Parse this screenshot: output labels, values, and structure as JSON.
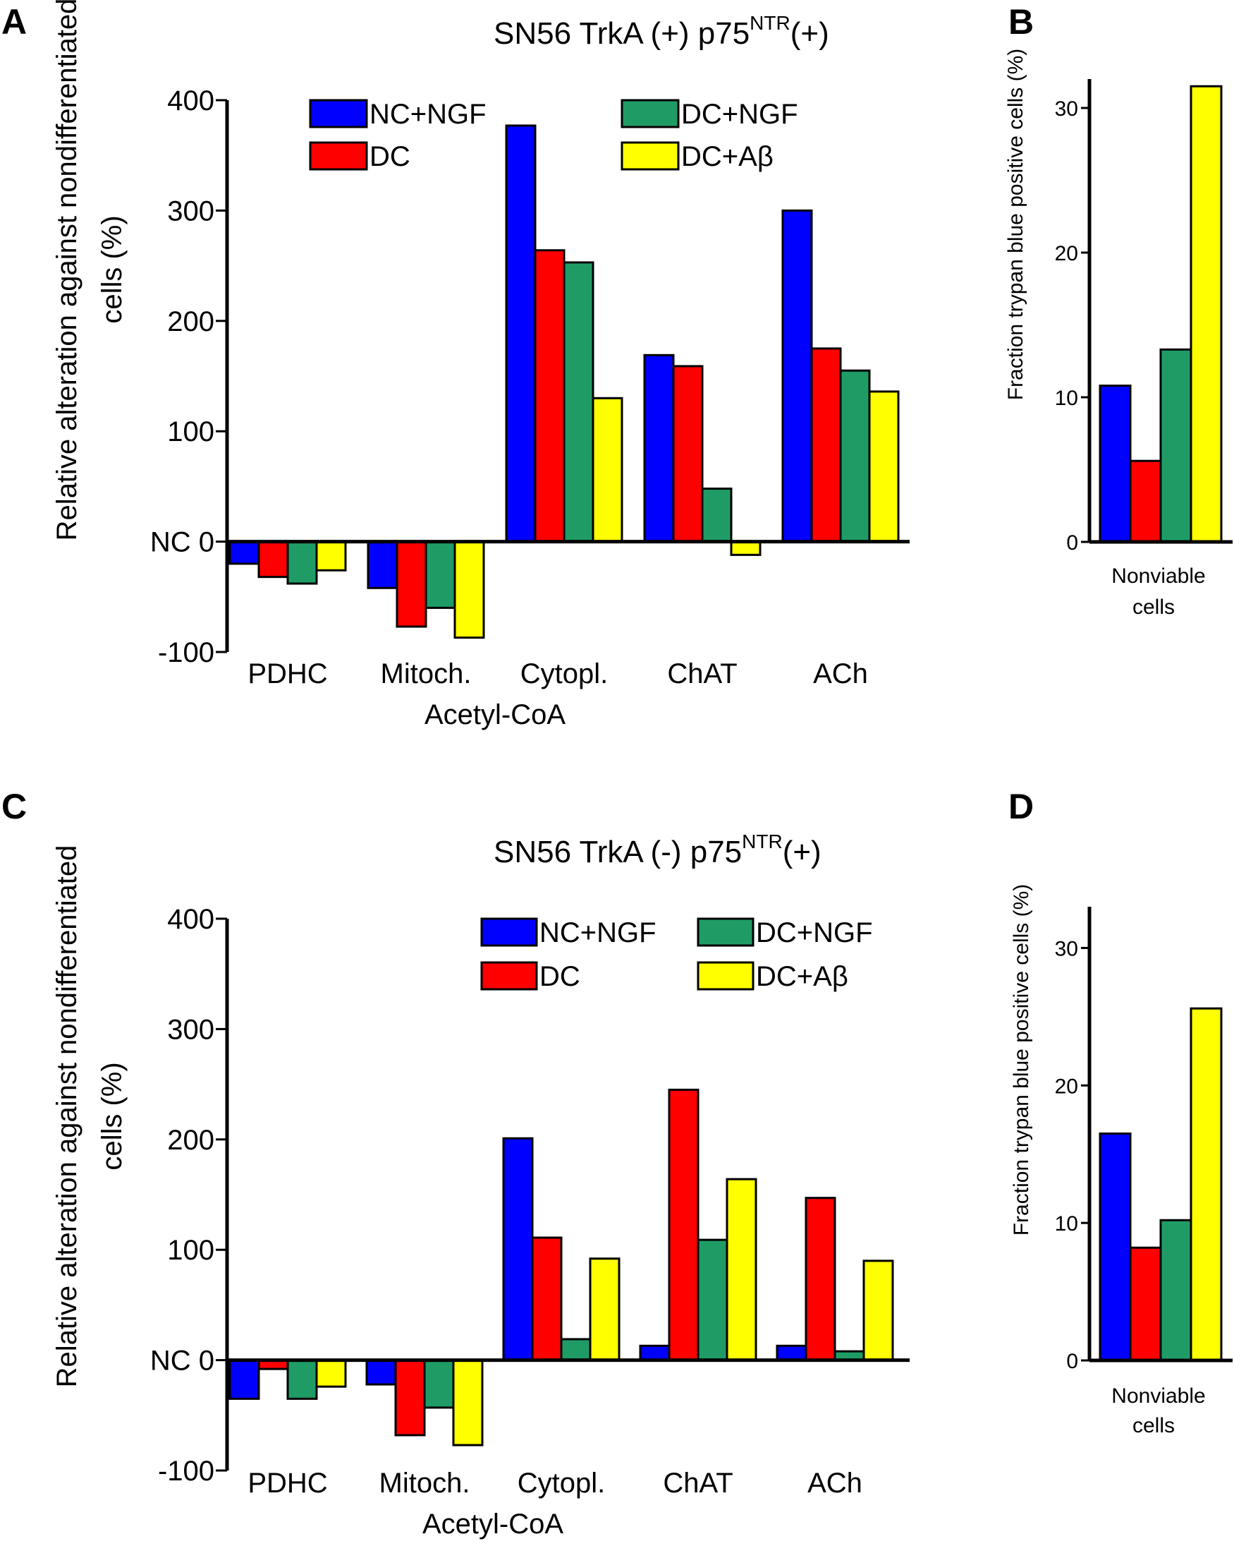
{
  "series_colors": {
    "NC+NGF": "#0000ff",
    "DC": "#ff0000",
    "DC+NGF": "#1f9c66",
    "DC+Aβ": "#ffff00"
  },
  "chart_data": [
    {
      "panel": "A",
      "type": "bar",
      "title": "SN56 TrkA (+) p75",
      "title_superscript": "NTR",
      "title_suffix": "(+)",
      "ylabel_line1": "Relative alteration against nondifferentiated",
      "ylabel_line2": "cells (%)",
      "ylim": [
        -100,
        400
      ],
      "yticks": [
        {
          "value": 400,
          "label": "400"
        },
        {
          "value": 300,
          "label": "300"
        },
        {
          "value": 200,
          "label": "200"
        },
        {
          "value": 100,
          "label": "100"
        },
        {
          "value": 0,
          "label": "NC 0"
        },
        {
          "value": -100,
          "label": "-100"
        }
      ],
      "categories": [
        "PDHC",
        "Mitoch.",
        "Cytopl.",
        "ChAT",
        "ACh"
      ],
      "category_group_label": "Acetyl-CoA",
      "series": [
        {
          "name": "NC+NGF",
          "values": [
            -20,
            -42,
            377,
            169,
            300
          ]
        },
        {
          "name": "DC",
          "values": [
            -32,
            -77,
            264,
            159,
            175
          ]
        },
        {
          "name": "DC+NGF",
          "values": [
            -38,
            -60,
            253,
            48,
            155
          ]
        },
        {
          "name": "DC+Aβ",
          "values": [
            -26,
            -87,
            130,
            -12,
            136
          ]
        }
      ],
      "legend": [
        "NC+NGF",
        "DC",
        "DC+NGF",
        "DC+Aβ"
      ]
    },
    {
      "panel": "B",
      "type": "bar",
      "ylabel": "Fraction trypan blue positive cells  (%)",
      "ylim": [
        0,
        32
      ],
      "yticks": [
        {
          "value": 30,
          "label": "30"
        },
        {
          "value": 20,
          "label": "20"
        },
        {
          "value": 10,
          "label": "10"
        },
        {
          "value": 0,
          "label": "0"
        }
      ],
      "category_line1": "Nonviable",
      "category_line2": "cells",
      "series": [
        {
          "name": "NC+NGF",
          "value": 10.8
        },
        {
          "name": "DC",
          "value": 5.6
        },
        {
          "name": "DC+NGF",
          "value": 13.3
        },
        {
          "name": "DC+Aβ",
          "value": 31.5
        }
      ]
    },
    {
      "panel": "C",
      "type": "bar",
      "title": "SN56 TrkA (-) p75",
      "title_superscript": "NTR",
      "title_suffix": "(+)",
      "ylabel_line1": "Relative alteration against nondifferentiated",
      "ylabel_line2": "cells (%)",
      "ylim": [
        -100,
        400
      ],
      "yticks": [
        {
          "value": 400,
          "label": "400"
        },
        {
          "value": 300,
          "label": "300"
        },
        {
          "value": 200,
          "label": "200"
        },
        {
          "value": 100,
          "label": "100"
        },
        {
          "value": 0,
          "label": "NC 0"
        },
        {
          "value": -100,
          "label": "-100"
        }
      ],
      "categories": [
        "PDHC",
        "Mitoch.",
        "Cytopl.",
        "ChAT",
        "ACh"
      ],
      "category_group_label": "Acetyl-CoA",
      "series": [
        {
          "name": "NC+NGF",
          "values": [
            -35,
            -22,
            201,
            13,
            13
          ]
        },
        {
          "name": "DC",
          "values": [
            -8,
            -68,
            111,
            245,
            147
          ]
        },
        {
          "name": "DC+NGF",
          "values": [
            -35,
            -43,
            19,
            109,
            8
          ]
        },
        {
          "name": "DC+Aβ",
          "values": [
            -24,
            -77,
            92,
            164,
            90
          ]
        }
      ],
      "legend": [
        "NC+NGF",
        "DC",
        "DC+NGF",
        "DC+Aβ"
      ]
    },
    {
      "panel": "D",
      "type": "bar",
      "ylabel": "Fraction trypan blue positive cells  (%)",
      "ylim": [
        0,
        33
      ],
      "yticks": [
        {
          "value": 30,
          "label": "30"
        },
        {
          "value": 20,
          "label": "20"
        },
        {
          "value": 10,
          "label": "10"
        },
        {
          "value": 0,
          "label": "0"
        }
      ],
      "category_line1": "Nonviable",
      "category_line2": "cells",
      "series": [
        {
          "name": "NC+NGF",
          "value": 16.5
        },
        {
          "name": "DC",
          "value": 8.2
        },
        {
          "name": "DC+NGF",
          "value": 10.2
        },
        {
          "name": "DC+Aβ",
          "value": 25.6
        }
      ]
    }
  ]
}
